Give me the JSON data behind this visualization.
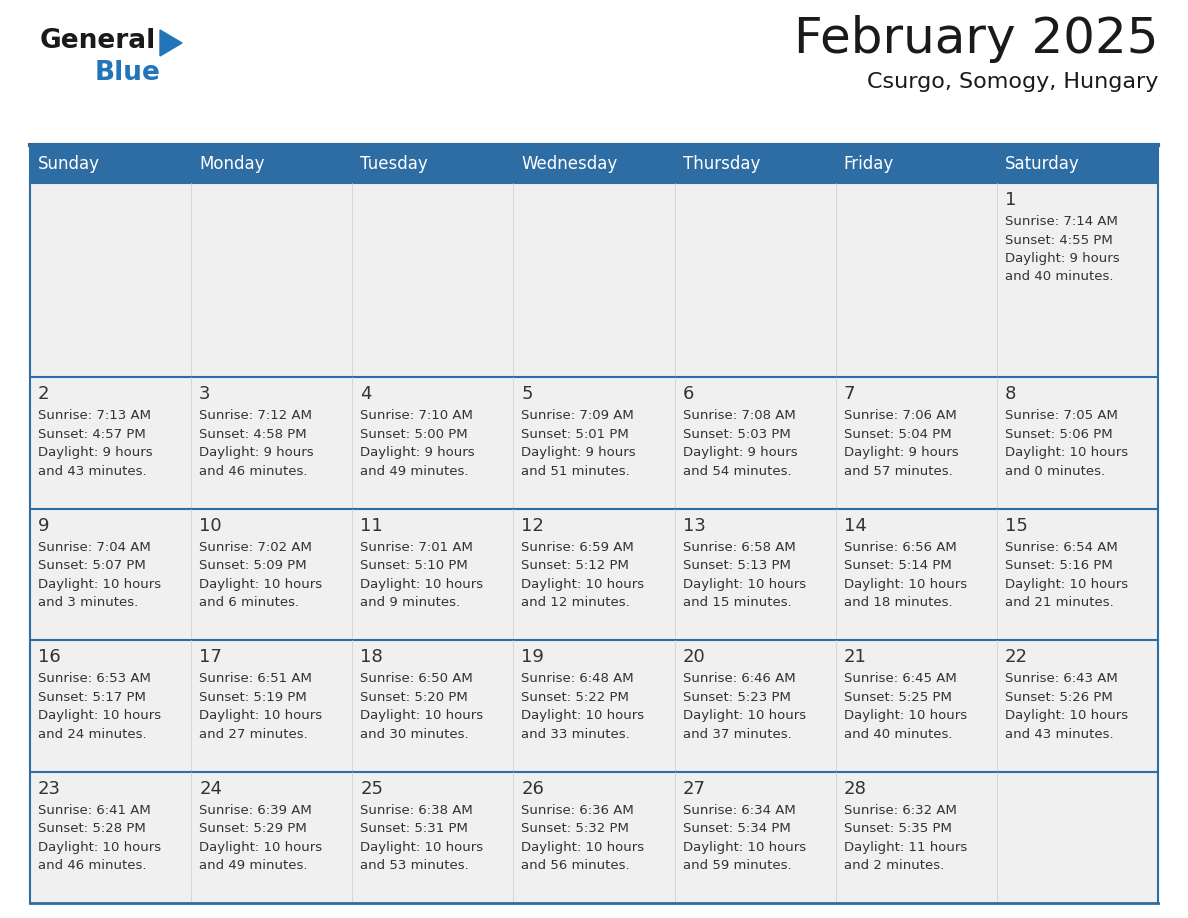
{
  "title": "February 2025",
  "subtitle": "Csurgo, Somogy, Hungary",
  "days_of_week": [
    "Sunday",
    "Monday",
    "Tuesday",
    "Wednesday",
    "Thursday",
    "Friday",
    "Saturday"
  ],
  "header_bg": "#2E6DA4",
  "header_text": "#FFFFFF",
  "cell_bg": "#F0F0F0",
  "border_color": "#2E6DA4",
  "day_number_color": "#333333",
  "text_color": "#333333",
  "title_color": "#1a1a1a",
  "logo_color_general": "#1a1a1a",
  "logo_color_blue": "#2175B8",
  "logo_triangle_color": "#2175B8",
  "calendar_data": [
    [
      null,
      null,
      null,
      null,
      null,
      null,
      {
        "day": 1,
        "sunrise": "7:14 AM",
        "sunset": "4:55 PM",
        "daylight": "9 hours",
        "daylight2": "and 40 minutes."
      }
    ],
    [
      {
        "day": 2,
        "sunrise": "7:13 AM",
        "sunset": "4:57 PM",
        "daylight": "9 hours",
        "daylight2": "and 43 minutes."
      },
      {
        "day": 3,
        "sunrise": "7:12 AM",
        "sunset": "4:58 PM",
        "daylight": "9 hours",
        "daylight2": "and 46 minutes."
      },
      {
        "day": 4,
        "sunrise": "7:10 AM",
        "sunset": "5:00 PM",
        "daylight": "9 hours",
        "daylight2": "and 49 minutes."
      },
      {
        "day": 5,
        "sunrise": "7:09 AM",
        "sunset": "5:01 PM",
        "daylight": "9 hours",
        "daylight2": "and 51 minutes."
      },
      {
        "day": 6,
        "sunrise": "7:08 AM",
        "sunset": "5:03 PM",
        "daylight": "9 hours",
        "daylight2": "and 54 minutes."
      },
      {
        "day": 7,
        "sunrise": "7:06 AM",
        "sunset": "5:04 PM",
        "daylight": "9 hours",
        "daylight2": "and 57 minutes."
      },
      {
        "day": 8,
        "sunrise": "7:05 AM",
        "sunset": "5:06 PM",
        "daylight": "10 hours",
        "daylight2": "and 0 minutes."
      }
    ],
    [
      {
        "day": 9,
        "sunrise": "7:04 AM",
        "sunset": "5:07 PM",
        "daylight": "10 hours",
        "daylight2": "and 3 minutes."
      },
      {
        "day": 10,
        "sunrise": "7:02 AM",
        "sunset": "5:09 PM",
        "daylight": "10 hours",
        "daylight2": "and 6 minutes."
      },
      {
        "day": 11,
        "sunrise": "7:01 AM",
        "sunset": "5:10 PM",
        "daylight": "10 hours",
        "daylight2": "and 9 minutes."
      },
      {
        "day": 12,
        "sunrise": "6:59 AM",
        "sunset": "5:12 PM",
        "daylight": "10 hours",
        "daylight2": "and 12 minutes."
      },
      {
        "day": 13,
        "sunrise": "6:58 AM",
        "sunset": "5:13 PM",
        "daylight": "10 hours",
        "daylight2": "and 15 minutes."
      },
      {
        "day": 14,
        "sunrise": "6:56 AM",
        "sunset": "5:14 PM",
        "daylight": "10 hours",
        "daylight2": "and 18 minutes."
      },
      {
        "day": 15,
        "sunrise": "6:54 AM",
        "sunset": "5:16 PM",
        "daylight": "10 hours",
        "daylight2": "and 21 minutes."
      }
    ],
    [
      {
        "day": 16,
        "sunrise": "6:53 AM",
        "sunset": "5:17 PM",
        "daylight": "10 hours",
        "daylight2": "and 24 minutes."
      },
      {
        "day": 17,
        "sunrise": "6:51 AM",
        "sunset": "5:19 PM",
        "daylight": "10 hours",
        "daylight2": "and 27 minutes."
      },
      {
        "day": 18,
        "sunrise": "6:50 AM",
        "sunset": "5:20 PM",
        "daylight": "10 hours",
        "daylight2": "and 30 minutes."
      },
      {
        "day": 19,
        "sunrise": "6:48 AM",
        "sunset": "5:22 PM",
        "daylight": "10 hours",
        "daylight2": "and 33 minutes."
      },
      {
        "day": 20,
        "sunrise": "6:46 AM",
        "sunset": "5:23 PM",
        "daylight": "10 hours",
        "daylight2": "and 37 minutes."
      },
      {
        "day": 21,
        "sunrise": "6:45 AM",
        "sunset": "5:25 PM",
        "daylight": "10 hours",
        "daylight2": "and 40 minutes."
      },
      {
        "day": 22,
        "sunrise": "6:43 AM",
        "sunset": "5:26 PM",
        "daylight": "10 hours",
        "daylight2": "and 43 minutes."
      }
    ],
    [
      {
        "day": 23,
        "sunrise": "6:41 AM",
        "sunset": "5:28 PM",
        "daylight": "10 hours",
        "daylight2": "and 46 minutes."
      },
      {
        "day": 24,
        "sunrise": "6:39 AM",
        "sunset": "5:29 PM",
        "daylight": "10 hours",
        "daylight2": "and 49 minutes."
      },
      {
        "day": 25,
        "sunrise": "6:38 AM",
        "sunset": "5:31 PM",
        "daylight": "10 hours",
        "daylight2": "and 53 minutes."
      },
      {
        "day": 26,
        "sunrise": "6:36 AM",
        "sunset": "5:32 PM",
        "daylight": "10 hours",
        "daylight2": "and 56 minutes."
      },
      {
        "day": 27,
        "sunrise": "6:34 AM",
        "sunset": "5:34 PM",
        "daylight": "10 hours",
        "daylight2": "and 59 minutes."
      },
      {
        "day": 28,
        "sunrise": "6:32 AM",
        "sunset": "5:35 PM",
        "daylight": "11 hours",
        "daylight2": "and 2 minutes."
      },
      null
    ]
  ]
}
